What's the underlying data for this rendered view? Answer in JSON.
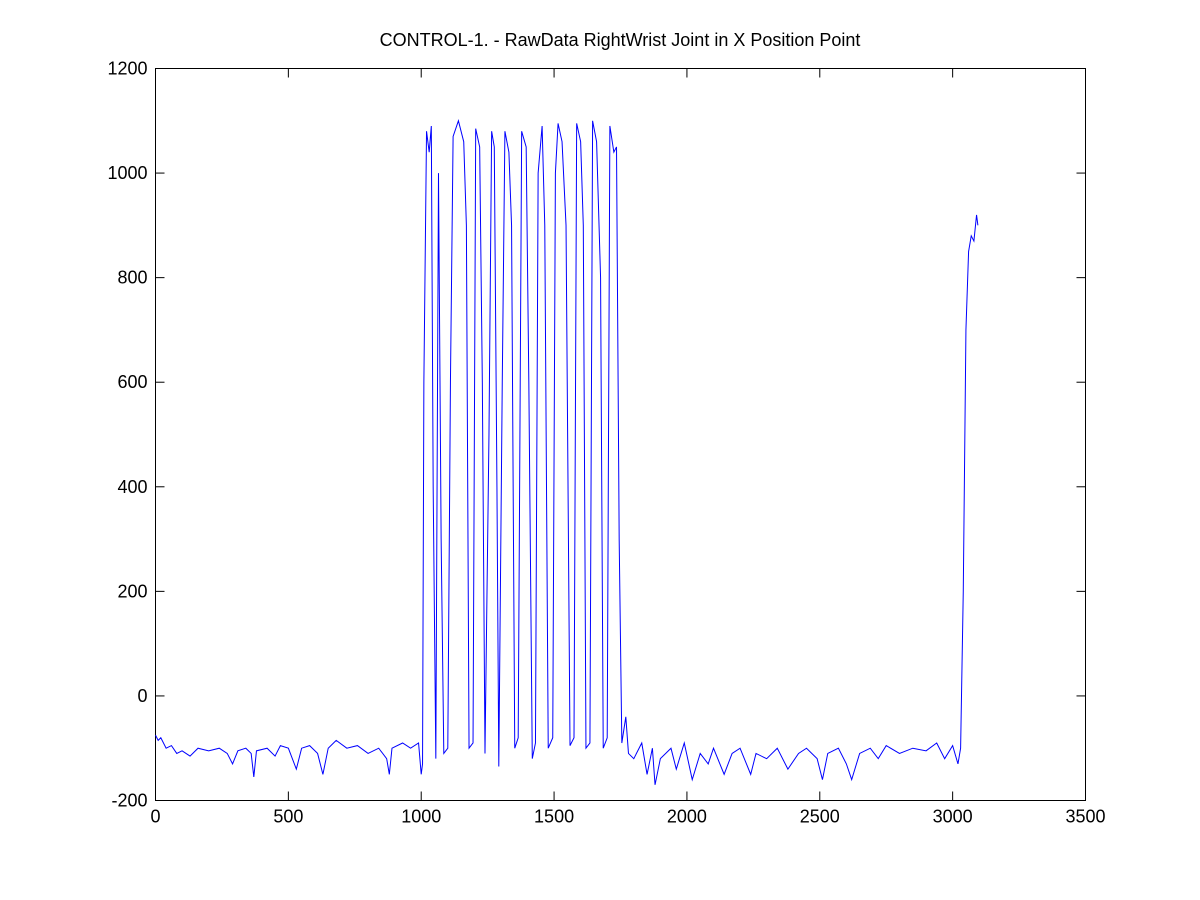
{
  "chart_data": {
    "type": "line",
    "title": "CONTROL-1. - RawData RightWrist Joint in X Position Point",
    "xlim": [
      0,
      3500
    ],
    "xticks": [
      0,
      500,
      1000,
      1500,
      2000,
      2500,
      3000,
      3500
    ],
    "ylim": [
      -200,
      1200
    ],
    "yticks": [
      -200,
      0,
      200,
      400,
      600,
      800,
      1000,
      1200
    ],
    "grid": false,
    "series": [
      {
        "color": "#0000ff",
        "x": [
          0,
          10,
          20,
          40,
          60,
          80,
          100,
          130,
          160,
          200,
          240,
          270,
          290,
          310,
          340,
          360,
          370,
          380,
          420,
          450,
          470,
          500,
          530,
          550,
          580,
          610,
          630,
          650,
          680,
          720,
          760,
          800,
          840,
          870,
          880,
          890,
          930,
          960,
          990,
          1000,
          1005,
          1010,
          1020,
          1030,
          1038,
          1045,
          1055,
          1065,
          1075,
          1085,
          1100,
          1110,
          1120,
          1140,
          1160,
          1170,
          1180,
          1195,
          1205,
          1220,
          1230,
          1240,
          1255,
          1265,
          1275,
          1285,
          1292,
          1305,
          1315,
          1330,
          1340,
          1352,
          1365,
          1378,
          1395,
          1405,
          1418,
          1430,
          1440,
          1455,
          1465,
          1478,
          1495,
          1505,
          1515,
          1530,
          1545,
          1560,
          1575,
          1585,
          1600,
          1610,
          1620,
          1635,
          1645,
          1660,
          1675,
          1685,
          1700,
          1710,
          1725,
          1735,
          1745,
          1755,
          1770,
          1780,
          1800,
          1830,
          1850,
          1870,
          1880,
          1900,
          1940,
          1960,
          1990,
          2020,
          2050,
          2080,
          2100,
          2140,
          2170,
          2200,
          2240,
          2260,
          2300,
          2340,
          2380,
          2420,
          2450,
          2490,
          2510,
          2530,
          2570,
          2600,
          2620,
          2650,
          2690,
          2720,
          2750,
          2800,
          2850,
          2900,
          2940,
          2970,
          3000,
          3020,
          3030,
          3040,
          3050,
          3060,
          3070,
          3080,
          3090,
          3095
        ],
        "values": [
          -75,
          -85,
          -80,
          -100,
          -95,
          -110,
          -105,
          -115,
          -100,
          -105,
          -100,
          -110,
          -130,
          -105,
          -100,
          -110,
          -155,
          -105,
          -100,
          -115,
          -95,
          -100,
          -140,
          -100,
          -95,
          -110,
          -150,
          -100,
          -85,
          -100,
          -95,
          -110,
          -100,
          -120,
          -150,
          -100,
          -90,
          -100,
          -90,
          -150,
          -130,
          600,
          1080,
          1040,
          1090,
          400,
          -120,
          1000,
          300,
          -110,
          -100,
          600,
          1070,
          1100,
          1060,
          900,
          -100,
          -90,
          1085,
          1050,
          600,
          -110,
          500,
          1080,
          1050,
          400,
          -135,
          600,
          1080,
          1040,
          900,
          -100,
          -80,
          1080,
          1050,
          600,
          -120,
          -90,
          1000,
          1090,
          900,
          -100,
          -80,
          1000,
          1095,
          1060,
          900,
          -95,
          -80,
          1095,
          1060,
          900,
          -100,
          -90,
          1100,
          1060,
          800,
          -100,
          -80,
          1090,
          1040,
          1050,
          300,
          -90,
          -40,
          -110,
          -120,
          -90,
          -150,
          -100,
          -170,
          -120,
          -100,
          -140,
          -90,
          -160,
          -110,
          -130,
          -100,
          -150,
          -110,
          -100,
          -150,
          -110,
          -120,
          -100,
          -140,
          -110,
          -100,
          -120,
          -160,
          -110,
          -100,
          -130,
          -160,
          -110,
          -100,
          -120,
          -95,
          -110,
          -100,
          -105,
          -90,
          -120,
          -95,
          -130,
          -100,
          200,
          700,
          850,
          880,
          870,
          920,
          900
        ]
      }
    ]
  }
}
